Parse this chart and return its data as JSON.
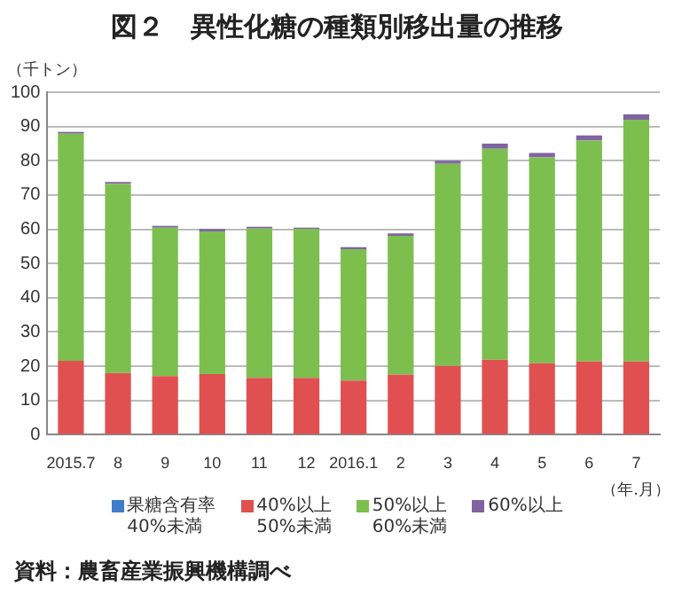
{
  "chart_data": {
    "type": "bar",
    "stacked": true,
    "title": "図２　異性化糖の種類別移出量の推移",
    "ylabel": "（千トン）",
    "xlabel": "（年.月）",
    "categories": [
      "2015.7",
      "8",
      "9",
      "10",
      "11",
      "12",
      "2016.1",
      "2",
      "3",
      "4",
      "5",
      "6",
      "7"
    ],
    "series": [
      {
        "name": "果糖含有率\n40%未満",
        "color": "#3d7dca",
        "values": [
          0,
          0,
          0,
          0,
          0,
          0,
          0,
          0,
          0,
          0,
          0,
          0,
          0
        ]
      },
      {
        "name": "40%以上\n50%未満",
        "color": "#e05050",
        "values": [
          21.6,
          18.0,
          17.1,
          17.7,
          16.6,
          16.6,
          15.8,
          17.6,
          20.1,
          21.9,
          20.9,
          21.4,
          21.4
        ]
      },
      {
        "name": "50%以上\n60%未満",
        "color": "#7cbf4f",
        "values": [
          66.3,
          55.3,
          43.4,
          41.7,
          43.6,
          43.5,
          38.4,
          40.5,
          59.0,
          61.6,
          60.1,
          64.5,
          70.6
        ]
      },
      {
        "name": "60%以上",
        "color": "#8064a2",
        "values": [
          0.5,
          0.5,
          0.5,
          0.7,
          0.5,
          0.4,
          0.6,
          0.7,
          0.9,
          1.5,
          1.3,
          1.5,
          1.5
        ]
      }
    ],
    "ylim": [
      0,
      100
    ],
    "yticks": [
      0,
      10,
      20,
      30,
      40,
      50,
      60,
      70,
      80,
      90,
      100
    ],
    "grid": "y",
    "legend": "bottom",
    "annotations": [
      "資料：農畜産業振興機構調べ"
    ]
  }
}
